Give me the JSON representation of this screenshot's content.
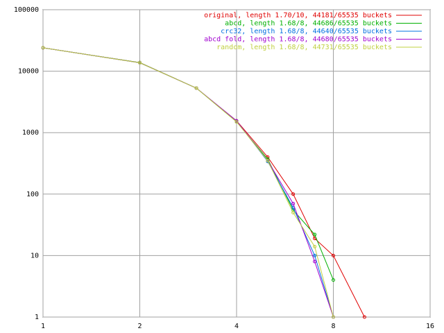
{
  "chart_data": {
    "type": "line",
    "x": [
      1,
      2,
      3,
      4,
      5,
      6,
      7,
      8,
      10
    ],
    "xlim": [
      1,
      16
    ],
    "xticks": [
      1,
      2,
      4,
      8,
      16
    ],
    "xscale": "log",
    "ylim": [
      1,
      100000
    ],
    "yticks": [
      1,
      10,
      100,
      1000,
      10000,
      100000
    ],
    "yscale": "log",
    "grid": true,
    "legend": "upper right",
    "series": [
      {
        "name": "original, length 1.70/10, 44181/65535 buckets",
        "color": "#e00000",
        "values": [
          24000,
          13800,
          5300,
          1560,
          400,
          100,
          19,
          10,
          1
        ]
      },
      {
        "name": "abcd, length 1.68/8, 44686/65535 buckets",
        "color": "#00b000",
        "values": [
          24000,
          13800,
          5300,
          1500,
          370,
          55,
          22,
          4,
          null
        ]
      },
      {
        "name": "crc32, length 1.68/8, 44640/65535 buckets",
        "color": "#0070e0",
        "values": [
          24000,
          13700,
          5300,
          1550,
          340,
          60,
          10,
          1,
          null
        ]
      },
      {
        "name": "abcd fold, length 1.68/8, 44680/65535 buckets",
        "color": "#a000d0",
        "values": [
          24000,
          13700,
          5300,
          1550,
          350,
          70,
          8,
          1,
          null
        ]
      },
      {
        "name": "random, length 1.68/8, 44731/65535 buckets",
        "color": "#c0d040",
        "values": [
          24000,
          13700,
          5300,
          1500,
          350,
          50,
          14,
          1,
          null
        ]
      }
    ]
  }
}
